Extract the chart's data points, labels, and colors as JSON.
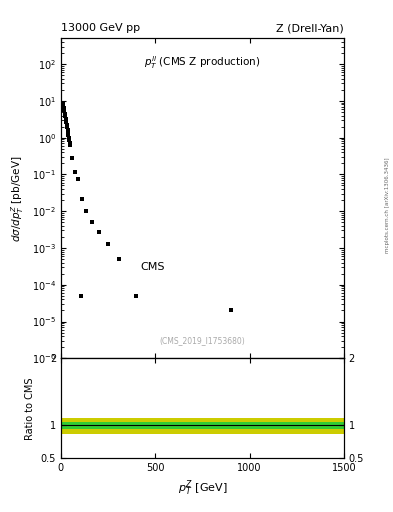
{
  "title_left": "13000 GeV pp",
  "title_right": "Z (Drell-Yan)",
  "annotation": "$p_T^{ll}$ (CMS Z production)",
  "cms_label": "CMS",
  "ref_label": "(CMS_2019_I1753680)",
  "right_label": "mcplots.cern.ch [arXiv:1306.3436]",
  "xlabel": "$p_T^Z$ [GeV]",
  "ylabel": "$d\\sigma/dp_T^Z$ [pb/GeV]",
  "ylabel_ratio": "Ratio to CMS",
  "xlim": [
    0,
    1500
  ],
  "ylim_log": [
    1e-06,
    500
  ],
  "ylim_ratio": [
    0.5,
    2.0
  ],
  "data_x": [
    2.5,
    5,
    7.5,
    10,
    12.5,
    15,
    17.5,
    20,
    22.5,
    25,
    27.5,
    30,
    32.5,
    35,
    37.5,
    40,
    42.5,
    45,
    47.5,
    50,
    60,
    75,
    90,
    110,
    135,
    165,
    200,
    250,
    310,
    400,
    105,
    900
  ],
  "data_y": [
    8.5,
    8.8,
    8.8,
    8.5,
    7.8,
    6.5,
    5.5,
    4.5,
    3.8,
    3.2,
    2.7,
    2.2,
    1.9,
    1.6,
    1.35,
    1.15,
    1.0,
    0.85,
    0.72,
    0.62,
    0.28,
    0.12,
    0.075,
    0.022,
    0.01,
    0.005,
    0.0028,
    0.0013,
    0.0005,
    5e-05,
    5e-05,
    2e-05
  ],
  "data_color": "#000000",
  "data_marker": "s",
  "data_markersize": 3.5,
  "ratio_line_y": 1.0,
  "ratio_band_green_lo": 0.94,
  "ratio_band_green_hi": 1.04,
  "ratio_band_yellow_lo": 0.87,
  "ratio_band_yellow_hi": 1.1,
  "ratio_band_green_color": "#33cc33",
  "ratio_band_yellow_color": "#cccc00",
  "ratio_line_color": "#000000",
  "background_color": "#ffffff",
  "panel_bg": "#ffffff"
}
